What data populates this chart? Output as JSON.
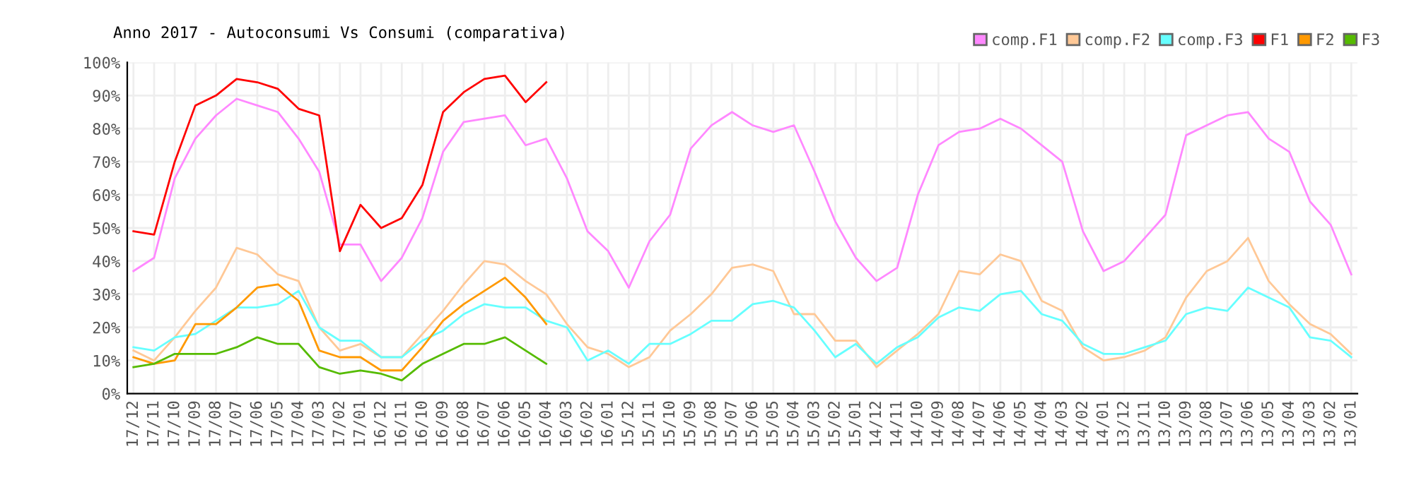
{
  "chart_data": {
    "type": "line",
    "title": "Anno 2017 - Autoconsumi Vs Consumi (comparativa)",
    "categories": [
      "17/12",
      "17/11",
      "17/10",
      "17/09",
      "17/08",
      "17/07",
      "17/06",
      "17/05",
      "17/04",
      "17/03",
      "17/02",
      "17/01",
      "16/12",
      "16/11",
      "16/10",
      "16/09",
      "16/08",
      "16/07",
      "16/06",
      "16/05",
      "16/04",
      "16/03",
      "16/02",
      "16/01",
      "15/12",
      "15/11",
      "15/10",
      "15/09",
      "15/08",
      "15/07",
      "15/06",
      "15/05",
      "15/04",
      "15/03",
      "15/02",
      "15/01",
      "14/12",
      "14/11",
      "14/10",
      "14/09",
      "14/08",
      "14/07",
      "14/06",
      "14/05",
      "14/04",
      "14/03",
      "14/02",
      "14/01",
      "13/12",
      "13/11",
      "13/10",
      "13/09",
      "13/08",
      "13/07",
      "13/06",
      "13/05",
      "13/04",
      "13/03",
      "13/02",
      "13/01"
    ],
    "series": [
      {
        "name": "comp.F1",
        "color": "#ff88ff",
        "values": [
          37,
          41,
          65,
          77,
          84,
          89,
          87,
          85,
          77,
          67,
          45,
          45,
          34,
          41,
          53,
          73,
          82,
          83,
          84,
          75,
          77,
          65,
          49,
          43,
          32,
          46,
          54,
          74,
          81,
          85,
          81,
          79,
          81,
          67,
          52,
          41,
          34,
          38,
          60,
          75,
          79,
          80,
          83,
          80,
          75,
          70,
          49,
          37,
          40,
          47,
          54,
          78,
          81,
          84,
          85,
          77,
          73,
          58,
          51,
          36
        ]
      },
      {
        "name": "comp.F2",
        "color": "#ffc896",
        "values": [
          13,
          10,
          17,
          25,
          32,
          44,
          42,
          36,
          34,
          20,
          13,
          15,
          11,
          11,
          18,
          25,
          33,
          40,
          39,
          34,
          30,
          21,
          14,
          12,
          8,
          11,
          19,
          24,
          30,
          38,
          39,
          37,
          24,
          24,
          16,
          16,
          8,
          13,
          18,
          24,
          37,
          36,
          42,
          40,
          28,
          25,
          14,
          10,
          11,
          13,
          17,
          29,
          37,
          40,
          47,
          34,
          27,
          21,
          18,
          12
        ]
      },
      {
        "name": "comp.F3",
        "color": "#66ffff",
        "values": [
          14,
          13,
          17,
          18,
          22,
          26,
          26,
          27,
          31,
          20,
          16,
          16,
          11,
          11,
          16,
          19,
          24,
          27,
          26,
          26,
          22,
          20,
          10,
          13,
          9,
          15,
          15,
          18,
          22,
          22,
          27,
          28,
          26,
          19,
          11,
          15,
          9,
          14,
          17,
          23,
          26,
          25,
          30,
          31,
          24,
          22,
          15,
          12,
          12,
          14,
          16,
          24,
          26,
          25,
          32,
          29,
          26,
          17,
          16,
          11
        ]
      },
      {
        "name": "F1",
        "color": "#ff0000",
        "values": [
          49,
          48,
          70,
          87,
          90,
          95,
          94,
          92,
          86,
          84,
          43,
          57,
          50,
          53,
          63,
          85,
          91,
          95,
          96,
          88,
          94,
          null,
          null,
          null,
          null,
          null,
          null,
          null,
          null,
          null,
          null,
          null,
          null,
          null,
          null,
          null,
          null,
          null,
          null,
          null,
          null,
          null,
          null,
          null,
          null,
          null,
          null,
          null,
          null,
          null,
          null,
          null,
          null,
          null,
          null,
          null,
          null,
          null,
          null,
          null
        ]
      },
      {
        "name": "F2",
        "color": "#ff9900",
        "values": [
          11,
          9,
          10,
          21,
          21,
          26,
          32,
          33,
          28,
          13,
          11,
          11,
          7,
          7,
          14,
          22,
          27,
          31,
          35,
          29,
          21,
          null,
          null,
          null,
          null,
          null,
          null,
          null,
          null,
          null,
          null,
          null,
          null,
          null,
          null,
          null,
          null,
          null,
          null,
          null,
          null,
          null,
          null,
          null,
          null,
          null,
          null,
          null,
          null,
          null,
          null,
          null,
          null,
          null,
          null,
          null,
          null,
          null,
          null,
          null
        ]
      },
      {
        "name": "F3",
        "color": "#55bb00",
        "values": [
          8,
          9,
          12,
          12,
          12,
          14,
          17,
          15,
          15,
          8,
          6,
          7,
          6,
          4,
          9,
          12,
          15,
          15,
          17,
          13,
          9,
          null,
          null,
          null,
          null,
          null,
          null,
          null,
          null,
          null,
          null,
          null,
          null,
          null,
          null,
          null,
          null,
          null,
          null,
          null,
          null,
          null,
          null,
          null,
          null,
          null,
          null,
          null,
          null,
          null,
          null,
          null,
          null,
          null,
          null,
          null,
          null,
          null,
          null,
          null
        ]
      }
    ],
    "ylim": [
      0,
      100
    ],
    "yticks": [
      {
        "value": 0,
        "label": "0%"
      },
      {
        "value": 10,
        "label": "10%"
      },
      {
        "value": 20,
        "label": "20%"
      },
      {
        "value": 30,
        "label": "30%"
      },
      {
        "value": 40,
        "label": "40%"
      },
      {
        "value": 50,
        "label": "50%"
      },
      {
        "value": 60,
        "label": "60%"
      },
      {
        "value": 70,
        "label": "70%"
      },
      {
        "value": 80,
        "label": "80%"
      },
      {
        "value": 90,
        "label": "90%"
      },
      {
        "value": 100,
        "label": "100%"
      }
    ],
    "grid": true,
    "legend": "top right",
    "marker": "none",
    "line_style": "solid"
  }
}
